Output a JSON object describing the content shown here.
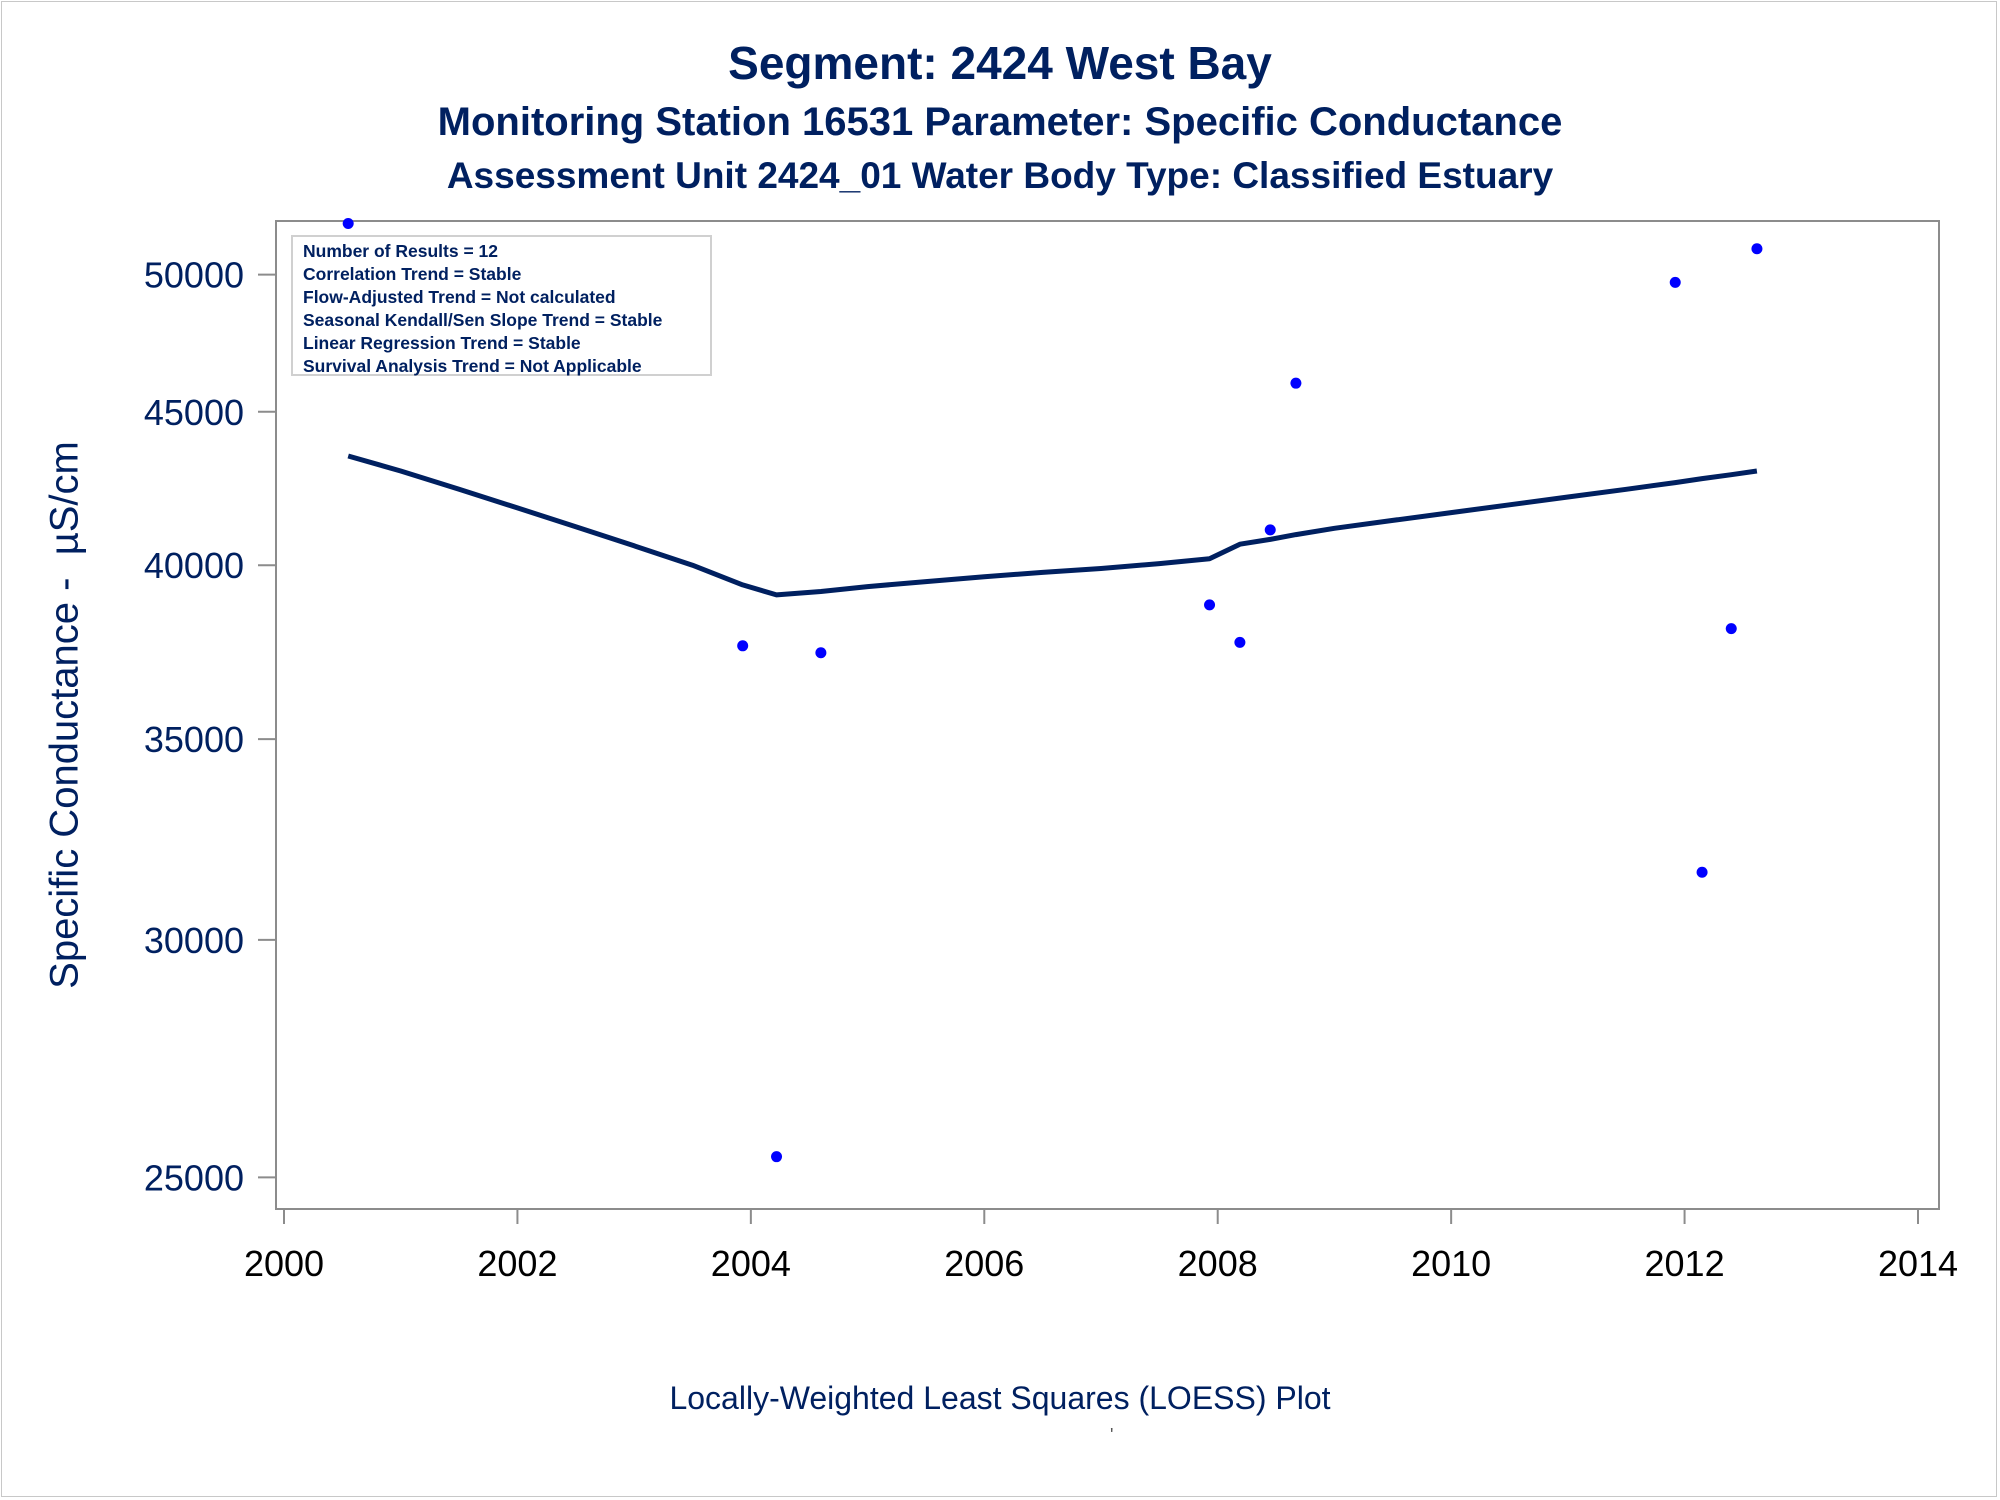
{
  "titles": {
    "line1": "Segment: 2424  West Bay",
    "line2": "Monitoring Station 16531 Parameter: Specific Conductance",
    "line3": "Assessment Unit 2424_01   Water Body Type: Classified Estuary"
  },
  "stats_box": [
    "Number of Results = 12",
    "Correlation Trend = Stable",
    "Flow-Adjusted Trend = Not calculated",
    "Seasonal Kendall/Sen Slope Trend = Stable",
    "Linear Regression Trend = Stable",
    "Survival Analysis Trend = Not Applicable"
  ],
  "footnote": "'",
  "colors": {
    "text": "#002060",
    "points": "#0000ff",
    "line": "#002060",
    "axis": "#8c8c8c"
  },
  "chart_data": {
    "type": "scatter",
    "title": "Segment: 2424  West Bay",
    "xlabel": "Locally-Weighted Least Squares (LOESS) Plot",
    "ylabel": "Specific Conductance -  µS/cm",
    "y_scale": "log",
    "xlim": [
      2000,
      2014
    ],
    "ylim": [
      24400,
      52100
    ],
    "x_ticks": [
      2000,
      2002,
      2004,
      2006,
      2008,
      2010,
      2012,
      2014
    ],
    "y_ticks": [
      25000,
      30000,
      35000,
      40000,
      45000,
      50000
    ],
    "grid": false,
    "series": [
      {
        "name": "",
        "kind": "points",
        "x": [
          2000.55,
          2003.93,
          2004.22,
          2004.6,
          2007.93,
          2008.19,
          2008.45,
          2008.67,
          2011.92,
          2012.15,
          2012.4,
          2012.62
        ],
        "y": [
          52000,
          37600,
          25400,
          37400,
          38800,
          37700,
          41100,
          46000,
          49700,
          31600,
          38100,
          51000
        ]
      },
      {
        "name": "",
        "kind": "loess",
        "x": [
          2000.55,
          2001.0,
          2001.5,
          2002.0,
          2002.5,
          2003.0,
          2003.5,
          2003.93,
          2004.22,
          2004.6,
          2005.0,
          2005.5,
          2006.0,
          2006.5,
          2007.0,
          2007.5,
          2007.93,
          2008.19,
          2008.45,
          2008.67,
          2009.0,
          2009.5,
          2010.0,
          2010.5,
          2011.0,
          2011.5,
          2011.92,
          2012.15,
          2012.4,
          2012.62
        ],
        "y": [
          43500,
          43000,
          42400,
          41800,
          41200,
          40600,
          40000,
          39400,
          39100,
          39200,
          39350,
          39500,
          39650,
          39780,
          39900,
          40050,
          40200,
          40650,
          40800,
          40950,
          41150,
          41400,
          41650,
          41900,
          42150,
          42400,
          42620,
          42750,
          42880,
          43000
        ]
      }
    ]
  }
}
